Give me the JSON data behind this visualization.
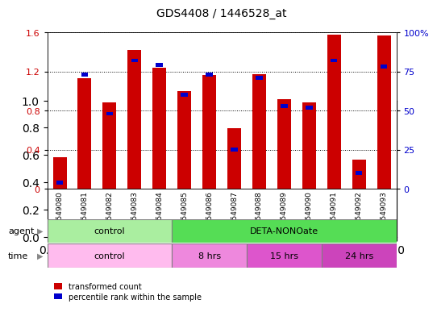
{
  "title": "GDS4408 / 1446528_at",
  "samples": [
    "GSM549080",
    "GSM549081",
    "GSM549082",
    "GSM549083",
    "GSM549084",
    "GSM549085",
    "GSM549086",
    "GSM549087",
    "GSM549088",
    "GSM549089",
    "GSM549090",
    "GSM549091",
    "GSM549092",
    "GSM549093"
  ],
  "red_values": [
    0.32,
    1.13,
    0.88,
    1.42,
    1.24,
    1.0,
    1.16,
    0.62,
    1.17,
    0.92,
    0.88,
    1.58,
    0.3,
    1.57
  ],
  "blue_values_pct": [
    4,
    73,
    48,
    82,
    79,
    60,
    73,
    25,
    71,
    53,
    52,
    82,
    10,
    78
  ],
  "ylim_left": [
    0,
    1.6
  ],
  "ylim_right": [
    0,
    100
  ],
  "yticks_left": [
    0,
    0.4,
    0.8,
    1.2,
    1.6
  ],
  "ytick_labels_left": [
    "0",
    "0.4",
    "0.8",
    "1.2",
    "1.6"
  ],
  "yticks_right": [
    0,
    25,
    50,
    75,
    100
  ],
  "ytick_labels_right": [
    "0",
    "25",
    "50",
    "75",
    "100%"
  ],
  "bar_color_red": "#cc0000",
  "bar_color_blue": "#0000cc",
  "agent_control_label": "control",
  "agent_deta_label": "DETA-NONOate",
  "time_control_label": "control",
  "time_8hrs_label": "8 hrs",
  "time_15hrs_label": "15 hrs",
  "time_24hrs_label": "24 hrs",
  "agent_row_label": "agent",
  "time_row_label": "time",
  "legend_red_label": "transformed count",
  "legend_blue_label": "percentile rank within the sample",
  "bg_color": "#ffffff",
  "agent_control_color": "#aaeea0",
  "agent_deta_color": "#55dd55",
  "time_control_color": "#ffbbee",
  "time_8hrs_color": "#ee88dd",
  "time_15hrs_color": "#dd55cc",
  "time_24hrs_color": "#cc44bb",
  "bar_width": 0.55,
  "tick_label_color_left": "#cc0000",
  "tick_label_color_right": "#0000cc",
  "n_control_samples": 5,
  "n_8hrs_samples": 3,
  "n_15hrs_samples": 3,
  "n_24hrs_samples": 3
}
